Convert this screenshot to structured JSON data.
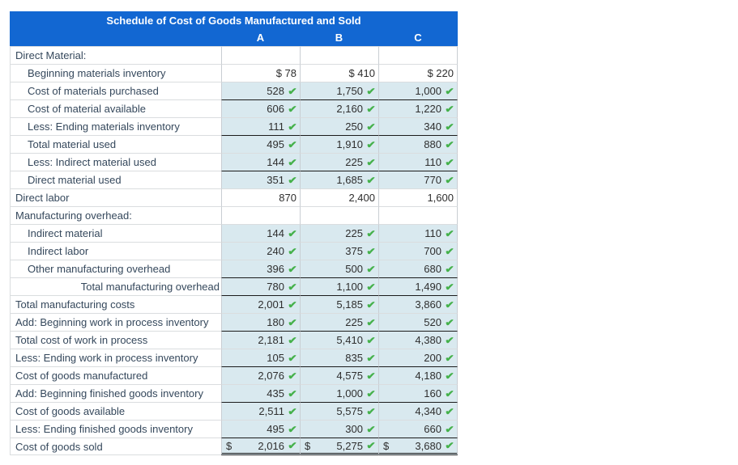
{
  "title": "Schedule of Cost of Goods Manufactured and Sold",
  "columns": [
    "A",
    "B",
    "C"
  ],
  "check_icon": "✔",
  "colors": {
    "header_blue": "#1267d2",
    "answer_cell_blue": "#d9e9ef",
    "check_green": "#45b14b"
  },
  "rows": [
    {
      "label": "Direct Material:",
      "indent": false,
      "values": [
        "",
        "",
        ""
      ],
      "checks": false,
      "filled": false
    },
    {
      "label": "Beginning materials inventory",
      "indent": true,
      "values": [
        "$ 78",
        "$ 410",
        "$ 220"
      ],
      "checks": false,
      "filled": false
    },
    {
      "label": "Cost of materials purchased",
      "indent": true,
      "values": [
        "528",
        "1,750",
        "1,000"
      ],
      "checks": true,
      "filled": true
    },
    {
      "label": "Cost of material available",
      "indent": true,
      "values": [
        "606",
        "2,160",
        "1,220"
      ],
      "checks": true,
      "filled": true,
      "top_border": true
    },
    {
      "label": "Less: Ending materials inventory",
      "indent": true,
      "values": [
        "111",
        "250",
        "340"
      ],
      "checks": true,
      "filled": true
    },
    {
      "label": "Total material used",
      "indent": true,
      "values": [
        "495",
        "1,910",
        "880"
      ],
      "checks": true,
      "filled": true,
      "top_border": true
    },
    {
      "label": "Less: Indirect material used",
      "indent": true,
      "values": [
        "144",
        "225",
        "110"
      ],
      "checks": true,
      "filled": true
    },
    {
      "label": "Direct material used",
      "indent": true,
      "values": [
        "351",
        "1,685",
        "770"
      ],
      "checks": true,
      "filled": true,
      "top_border": true
    },
    {
      "label": "Direct labor",
      "indent": false,
      "values": [
        "870",
        "2,400",
        "1,600"
      ],
      "checks": false,
      "filled": false
    },
    {
      "label": "Manufacturing overhead:",
      "indent": false,
      "values": [
        "",
        "",
        ""
      ],
      "checks": false,
      "filled": false
    },
    {
      "label": "Indirect material",
      "indent": true,
      "values": [
        "144",
        "225",
        "110"
      ],
      "checks": true,
      "filled": true
    },
    {
      "label": "Indirect labor",
      "indent": true,
      "values": [
        "240",
        "375",
        "700"
      ],
      "checks": true,
      "filled": true
    },
    {
      "label": "Other manufacturing overhead",
      "indent": true,
      "values": [
        "396",
        "500",
        "680"
      ],
      "checks": true,
      "filled": true
    },
    {
      "label": "Total manufacturing overhead",
      "indent": false,
      "align": "right",
      "values": [
        "780",
        "1,100",
        "1,490"
      ],
      "checks": true,
      "filled": true,
      "top_border": true
    },
    {
      "label": "Total manufacturing costs",
      "indent": false,
      "values": [
        "2,001",
        "5,185",
        "3,860"
      ],
      "checks": true,
      "filled": true,
      "top_border": true
    },
    {
      "label": "Add: Beginning work in process inventory",
      "indent": false,
      "values": [
        "180",
        "225",
        "520"
      ],
      "checks": true,
      "filled": true
    },
    {
      "label": "Total cost of work in process",
      "indent": false,
      "values": [
        "2,181",
        "5,410",
        "4,380"
      ],
      "checks": true,
      "filled": true,
      "top_border": true
    },
    {
      "label": "Less: Ending work in process inventory",
      "indent": false,
      "values": [
        "105",
        "835",
        "200"
      ],
      "checks": true,
      "filled": true
    },
    {
      "label": "Cost of goods manufactured",
      "indent": false,
      "values": [
        "2,076",
        "4,575",
        "4,180"
      ],
      "checks": true,
      "filled": true,
      "top_border": true
    },
    {
      "label": "Add: Beginning finished goods inventory",
      "indent": false,
      "values": [
        "435",
        "1,000",
        "160"
      ],
      "checks": true,
      "filled": true
    },
    {
      "label": "Cost of goods available",
      "indent": false,
      "values": [
        "2,511",
        "5,575",
        "4,340"
      ],
      "checks": true,
      "filled": true,
      "top_border": true
    },
    {
      "label": "Less: Ending finished goods inventory",
      "indent": false,
      "values": [
        "495",
        "300",
        "660"
      ],
      "checks": true,
      "filled": true
    },
    {
      "label": "Cost of goods sold",
      "indent": false,
      "values": [
        "2,016",
        "5,275",
        "3,680"
      ],
      "checks": true,
      "filled": true,
      "top_border": true,
      "dollar_left": true,
      "dollar": "$",
      "double_bottom": true
    }
  ]
}
